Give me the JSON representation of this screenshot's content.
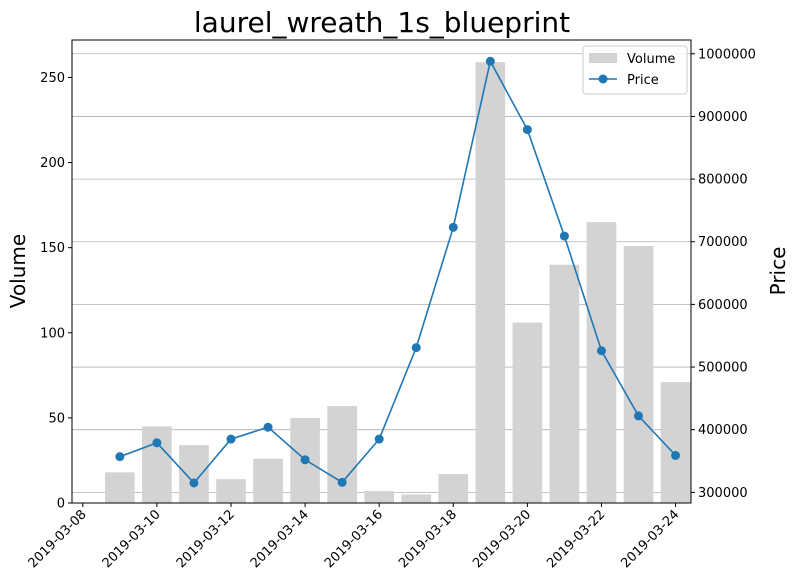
{
  "chart_data": {
    "type": "bar",
    "title": "laurel_wreath_1s_blueprint",
    "ylabel": "Volume",
    "y2label": "Price",
    "dates": [
      "2019-03-09",
      "2019-03-10",
      "2019-03-11",
      "2019-03-12",
      "2019-03-13",
      "2019-03-14",
      "2019-03-15",
      "2019-03-16",
      "2019-03-17",
      "2019-03-18",
      "2019-03-19",
      "2019-03-20",
      "2019-03-21",
      "2019-03-22",
      "2019-03-23",
      "2019-03-24"
    ],
    "series": [
      {
        "name": "Volume",
        "type": "bar",
        "axis": "left",
        "values": [
          18,
          45,
          34,
          14,
          26,
          50,
          57,
          7,
          5,
          17,
          259,
          106,
          140,
          165,
          151,
          71
        ]
      },
      {
        "name": "Price",
        "type": "line",
        "axis": "right",
        "values": [
          357000,
          379000,
          315000,
          385000,
          404000,
          352000,
          316000,
          385000,
          531000,
          723000,
          988000,
          879000,
          709000,
          526000,
          422000,
          359000
        ]
      }
    ],
    "xticks": [
      "2019-03-08",
      "2019-03-10",
      "2019-03-12",
      "2019-03-14",
      "2019-03-16",
      "2019-03-18",
      "2019-03-20",
      "2019-03-22",
      "2019-03-24"
    ],
    "xlim": [
      "2019-03-07T17:00",
      "2019-03-24T10:00"
    ],
    "ylim": [
      0,
      272
    ],
    "yticks": [
      0,
      50,
      100,
      150,
      200,
      250
    ],
    "y2lim": [
      283000,
      1022000
    ],
    "y2ticks": [
      300000,
      400000,
      500000,
      600000,
      700000,
      800000,
      900000,
      1000000
    ],
    "grid": "horizontal, right axis",
    "legend_position": "top-right",
    "colors": {
      "bar": "#d3d3d3",
      "line": "#1f77b4",
      "grid": "#b0b0b0"
    }
  }
}
